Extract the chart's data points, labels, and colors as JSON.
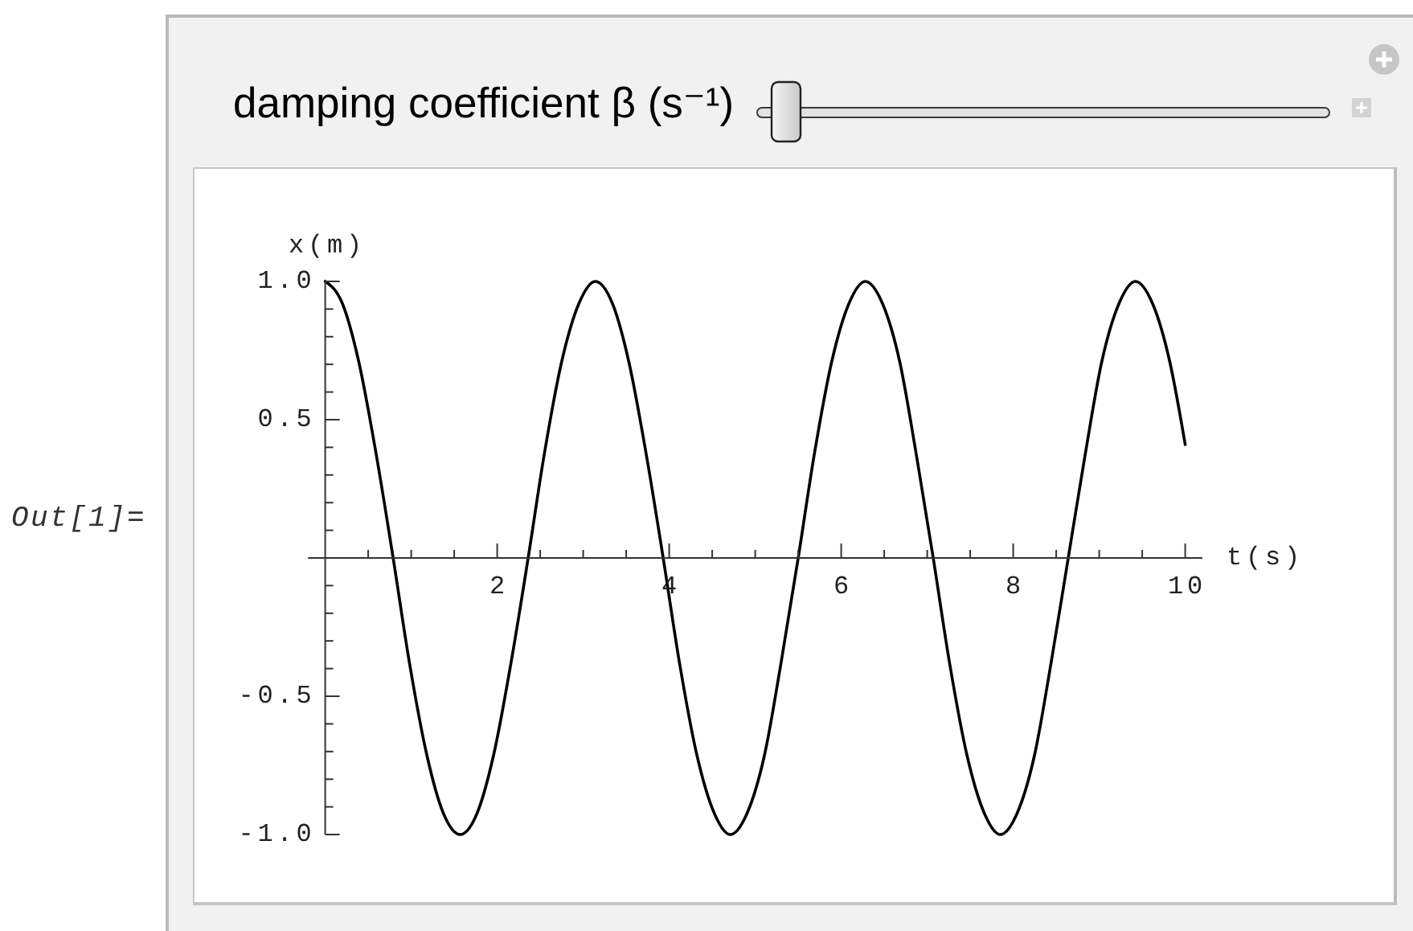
{
  "chart_data": {
    "type": "line",
    "xlabel": "t(s)",
    "ylabel": "x(m)",
    "x": [
      0,
      0.2,
      0.39,
      0.59,
      0.79,
      0.98,
      1.18,
      1.37,
      1.57,
      1.77,
      1.96,
      2.16,
      2.36,
      2.55,
      2.75,
      2.95,
      3.14,
      3.34,
      3.53,
      3.73,
      3.93,
      4.12,
      4.32,
      4.52,
      4.71,
      4.91,
      5.11,
      5.3,
      5.5,
      5.69,
      5.89,
      6.09,
      6.28,
      6.48,
      6.68,
      6.87,
      7.07,
      7.26,
      7.46,
      7.66,
      7.85,
      8.05,
      8.25,
      8.44,
      8.64,
      8.84,
      9.03,
      9.23,
      9.42,
      9.62,
      9.82,
      10
    ],
    "series": [
      {
        "color": "#000000",
        "values": [
          1,
          0.92,
          0.71,
          0.38,
          0,
          -0.38,
          -0.71,
          -0.92,
          -1,
          -0.92,
          -0.71,
          -0.38,
          0,
          0.38,
          0.71,
          0.92,
          1,
          0.92,
          0.71,
          0.38,
          0,
          -0.38,
          -0.71,
          -0.92,
          -1,
          -0.92,
          -0.71,
          -0.38,
          0,
          0.38,
          0.71,
          0.92,
          1,
          0.92,
          0.71,
          0.38,
          0,
          -0.38,
          -0.71,
          -0.92,
          -1,
          -0.92,
          -0.71,
          -0.38,
          0,
          0.38,
          0.71,
          0.92,
          1,
          0.92,
          0.71,
          0.41
        ]
      }
    ],
    "xlim": [
      -0.2,
      10.2
    ],
    "ylim": [
      -1,
      1
    ],
    "xticks": [
      {
        "value": 0.5,
        "label": null
      },
      {
        "value": 1,
        "label": null
      },
      {
        "value": 1.5,
        "label": null
      },
      2,
      {
        "value": 2.5,
        "label": null
      },
      {
        "value": 3,
        "label": null
      },
      {
        "value": 3.5,
        "label": null
      },
      4,
      {
        "value": 4.5,
        "label": null
      },
      {
        "value": 5,
        "label": null
      },
      {
        "value": 5.5,
        "label": null
      },
      6,
      {
        "value": 6.5,
        "label": null
      },
      {
        "value": 7,
        "label": null
      },
      {
        "value": 7.5,
        "label": null
      },
      8,
      {
        "value": 8.5,
        "label": null
      },
      {
        "value": 9,
        "label": null
      },
      {
        "value": 9.5,
        "label": null
      },
      10
    ],
    "yticks": [
      {
        "value": -1,
        "label": "-1.0"
      },
      {
        "value": -0.9,
        "label": null
      },
      {
        "value": -0.8,
        "label": null
      },
      {
        "value": -0.7,
        "label": null
      },
      {
        "value": -0.6,
        "label": null
      },
      -0.5,
      {
        "value": -0.4,
        "label": null
      },
      {
        "value": -0.3,
        "label": null
      },
      {
        "value": -0.2,
        "label": null
      },
      {
        "value": -0.1,
        "label": null
      },
      {
        "value": 0.1,
        "label": null
      },
      {
        "value": 0.2,
        "label": null
      },
      {
        "value": 0.3,
        "label": null
      },
      {
        "value": 0.4,
        "label": null
      },
      0.5,
      {
        "value": 0.6,
        "label": null
      },
      {
        "value": 0.7,
        "label": null
      },
      {
        "value": 0.8,
        "label": null
      },
      {
        "value": 0.9,
        "label": null
      },
      {
        "value": 1,
        "label": "1.0"
      }
    ],
    "annotations": [
      "damping coefficient β (s⁻¹)",
      "Out[1]="
    ]
  }
}
